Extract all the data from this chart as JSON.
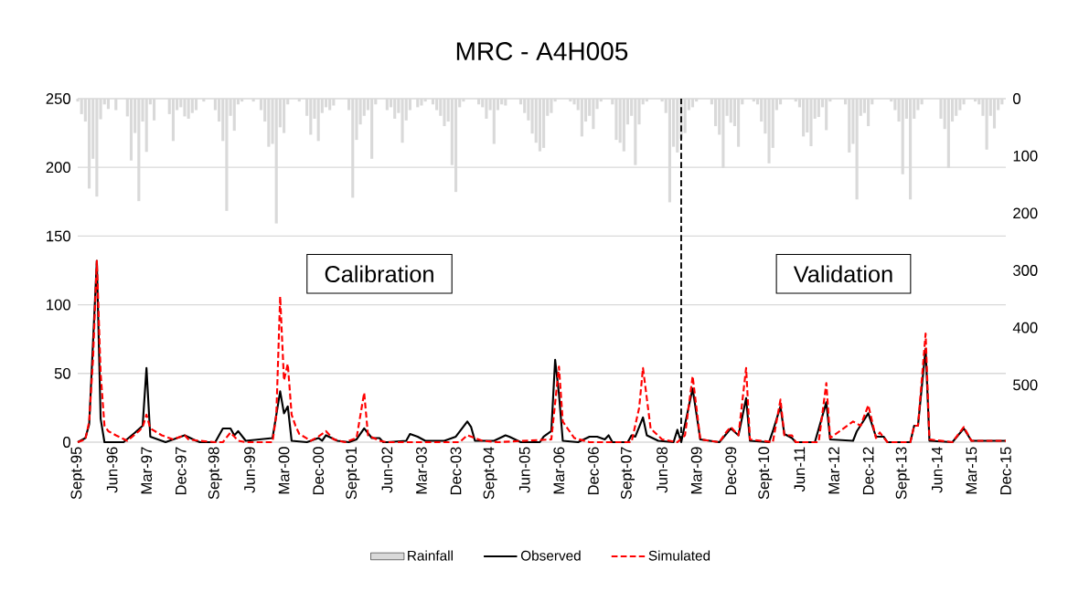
{
  "chart_data": {
    "type": "line",
    "title": "MRC - A4H005",
    "xlim": [
      "1995-09",
      "2015-12"
    ],
    "xticks": [
      {
        "value": "1995-09",
        "label": "Sept-95"
      },
      {
        "value": "1996-06",
        "label": "Jun-96"
      },
      {
        "value": "1997-03",
        "label": "Mar-97"
      },
      {
        "value": "1997-12",
        "label": "Dec-97"
      },
      {
        "value": "1998-09",
        "label": "Sept-98"
      },
      {
        "value": "1999-06",
        "label": "Jun-99"
      },
      {
        "value": "2000-03",
        "label": "Mar-00"
      },
      {
        "value": "2000-12",
        "label": "Dec-00"
      },
      {
        "value": "2001-09",
        "label": "Sept-01"
      },
      {
        "value": "2002-06",
        "label": "Jun-02"
      },
      {
        "value": "2003-03",
        "label": "Mar-03"
      },
      {
        "value": "2003-12",
        "label": "Dec-03"
      },
      {
        "value": "2004-09",
        "label": "Sept-04"
      },
      {
        "value": "2005-06",
        "label": "Jun-05"
      },
      {
        "value": "2006-03",
        "label": "Mar-06"
      },
      {
        "value": "2006-12",
        "label": "Dec-06"
      },
      {
        "value": "2007-09",
        "label": "Sept-07"
      },
      {
        "value": "2008-06",
        "label": "Jun-08"
      },
      {
        "value": "2009-03",
        "label": "Mar-09"
      },
      {
        "value": "2009-12",
        "label": "Dec-09"
      },
      {
        "value": "2010-09",
        "label": "Sept-10"
      },
      {
        "value": "2011-06",
        "label": "Jun-11"
      },
      {
        "value": "2012-03",
        "label": "Mar-12"
      },
      {
        "value": "2012-12",
        "label": "Dec-12"
      },
      {
        "value": "2013-09",
        "label": "Sept-13"
      },
      {
        "value": "2014-06",
        "label": "Jun-14"
      },
      {
        "value": "2015-03",
        "label": "Mar-15"
      },
      {
        "value": "2015-12",
        "label": "Dec-15"
      }
    ],
    "ylim": [
      0,
      250
    ],
    "yticks": [
      0,
      50,
      100,
      150,
      200,
      250
    ],
    "y2lim": [
      600,
      0
    ],
    "y2ticks": [
      0,
      100,
      200,
      300,
      400,
      500,
      {
        "value": 600,
        "label": null
      }
    ],
    "grid": "y",
    "legend": "bottom",
    "annotations": [
      "Calibration",
      "Validation"
    ],
    "ref_lines": [
      {
        "axis": "x",
        "value": "2008-11",
        "color": "#000000",
        "line_style": "dashed"
      }
    ],
    "series": [
      {
        "name": "Rainfall",
        "type": "bar",
        "axis": "y2",
        "color": "#d9d9d9",
        "x": [
          "1995-09",
          "1995-10",
          "1995-11",
          "1995-12",
          "1996-01",
          "1996-02",
          "1996-03",
          "1996-04",
          "1996-05",
          "1996-06",
          "1996-07",
          "1996-08",
          "1996-09",
          "1996-10",
          "1996-11",
          "1996-12",
          "1997-01",
          "1997-02",
          "1997-03",
          "1997-04",
          "1997-05",
          "1997-06",
          "1997-07",
          "1997-08",
          "1997-09",
          "1997-10",
          "1997-11",
          "1997-12",
          "1998-01",
          "1998-02",
          "1998-03",
          "1998-04",
          "1998-05",
          "1998-06",
          "1998-07",
          "1998-08",
          "1998-09",
          "1998-10",
          "1998-11",
          "1998-12",
          "1999-01",
          "1999-02",
          "1999-03",
          "1999-04",
          "1999-05",
          "1999-06",
          "1999-07",
          "1999-08",
          "1999-09",
          "1999-10",
          "1999-11",
          "1999-12",
          "2000-01",
          "2000-02",
          "2000-03",
          "2000-04",
          "2000-05",
          "2000-06",
          "2000-07",
          "2000-08",
          "2000-09",
          "2000-10",
          "2000-11",
          "2000-12",
          "2001-01",
          "2001-02",
          "2001-03",
          "2001-04",
          "2001-05",
          "2001-06",
          "2001-07",
          "2001-08",
          "2001-09",
          "2001-10",
          "2001-11",
          "2001-12",
          "2002-01",
          "2002-02",
          "2002-03",
          "2002-04",
          "2002-05",
          "2002-06",
          "2002-07",
          "2002-08",
          "2002-09",
          "2002-10",
          "2002-11",
          "2002-12",
          "2003-01",
          "2003-02",
          "2003-03",
          "2003-04",
          "2003-05",
          "2003-06",
          "2003-07",
          "2003-08",
          "2003-09",
          "2003-10",
          "2003-11",
          "2003-12",
          "2004-01",
          "2004-02",
          "2004-03",
          "2004-04",
          "2004-05",
          "2004-06",
          "2004-07",
          "2004-08",
          "2004-09",
          "2004-10",
          "2004-11",
          "2004-12",
          "2005-01",
          "2005-02",
          "2005-03",
          "2005-04",
          "2005-05",
          "2005-06",
          "2005-07",
          "2005-08",
          "2005-09",
          "2005-10",
          "2005-11",
          "2005-12",
          "2006-01",
          "2006-02",
          "2006-03",
          "2006-04",
          "2006-05",
          "2006-06",
          "2006-07",
          "2006-08",
          "2006-09",
          "2006-10",
          "2006-11",
          "2006-12",
          "2007-01",
          "2007-02",
          "2007-03",
          "2007-04",
          "2007-05",
          "2007-06",
          "2007-07",
          "2007-08",
          "2007-09",
          "2007-10",
          "2007-11",
          "2007-12",
          "2008-01",
          "2008-02",
          "2008-03",
          "2008-04",
          "2008-05",
          "2008-06",
          "2008-07",
          "2008-08",
          "2008-09",
          "2008-10",
          "2008-11",
          "2008-12",
          "2009-01",
          "2009-02",
          "2009-03",
          "2009-04",
          "2009-05",
          "2009-06",
          "2009-07",
          "2009-08",
          "2009-09",
          "2009-10",
          "2009-11",
          "2009-12",
          "2010-01",
          "2010-02",
          "2010-03",
          "2010-04",
          "2010-05",
          "2010-06",
          "2010-07",
          "2010-08",
          "2010-09",
          "2010-10",
          "2010-11",
          "2010-12",
          "2011-01",
          "2011-02",
          "2011-03",
          "2011-04",
          "2011-05",
          "2011-06",
          "2011-07",
          "2011-08",
          "2011-09",
          "2011-10",
          "2011-11",
          "2011-12",
          "2012-01",
          "2012-02",
          "2012-03",
          "2012-04",
          "2012-05",
          "2012-06",
          "2012-07",
          "2012-08",
          "2012-09",
          "2012-10",
          "2012-11",
          "2012-12",
          "2013-01",
          "2013-02",
          "2013-03",
          "2013-04",
          "2013-05",
          "2013-06",
          "2013-07",
          "2013-08",
          "2013-09",
          "2013-10",
          "2013-11",
          "2013-12",
          "2014-01",
          "2014-02",
          "2014-03",
          "2014-04",
          "2014-05",
          "2014-06",
          "2014-07",
          "2014-08",
          "2014-09",
          "2014-10",
          "2014-11",
          "2014-12",
          "2015-01",
          "2015-02",
          "2015-03",
          "2015-04",
          "2015-05",
          "2015-06",
          "2015-07",
          "2015-08",
          "2015-09",
          "2015-10",
          "2015-11",
          "2015-12"
        ],
        "values": [
          5,
          27,
          40,
          157,
          105,
          171,
          36,
          10,
          18,
          0,
          20,
          0,
          0,
          31,
          108,
          60,
          179,
          40,
          93,
          10,
          38,
          0,
          0,
          0,
          27,
          74,
          20,
          15,
          31,
          35,
          25,
          20,
          0,
          5,
          0,
          0,
          20,
          40,
          74,
          196,
          30,
          56,
          10,
          5,
          0,
          0,
          5,
          0,
          20,
          40,
          84,
          79,
          218,
          50,
          60,
          10,
          0,
          0,
          5,
          0,
          30,
          63,
          35,
          74,
          25,
          15,
          20,
          12,
          0,
          0,
          0,
          20,
          173,
          72,
          45,
          30,
          20,
          105,
          10,
          0,
          0,
          20,
          15,
          35,
          25,
          77,
          38,
          20,
          0,
          15,
          12,
          5,
          0,
          10,
          20,
          30,
          48,
          40,
          116,
          163,
          15,
          5,
          0,
          0,
          0,
          10,
          15,
          35,
          20,
          79,
          20,
          10,
          12,
          0,
          0,
          0,
          10,
          25,
          38,
          61,
          77,
          92,
          86,
          30,
          25,
          5,
          0,
          0,
          0,
          5,
          10,
          20,
          66,
          40,
          30,
          53,
          18,
          5,
          0,
          0,
          10,
          72,
          77,
          92,
          45,
          30,
          116,
          45,
          10,
          5,
          0,
          0,
          0,
          5,
          25,
          181,
          84,
          94,
          70,
          60,
          20,
          15,
          5,
          0,
          0,
          0,
          10,
          48,
          63,
          121,
          30,
          42,
          48,
          84,
          10,
          0,
          0,
          5,
          10,
          40,
          61,
          113,
          86,
          20,
          10,
          0,
          0,
          0,
          5,
          15,
          66,
          59,
          83,
          35,
          32,
          15,
          55,
          5,
          0,
          0,
          0,
          10,
          94,
          79,
          176,
          30,
          25,
          48,
          10,
          0,
          0,
          0,
          0,
          5,
          20,
          40,
          132,
          35,
          176,
          35,
          20,
          10,
          0,
          0,
          0,
          0,
          35,
          53,
          121,
          40,
          30,
          20,
          10,
          0,
          0,
          5,
          10,
          30,
          89,
          30,
          52,
          20,
          10,
          0
        ]
      },
      {
        "name": "Observed",
        "color": "#000000",
        "line_style": "solid",
        "x": [
          "1995-09",
          "1995-11",
          "1995-12",
          "1996-02",
          "1996-03",
          "1996-04",
          "1996-09",
          "1996-12",
          "1997-02",
          "1997-03",
          "1997-04",
          "1997-08",
          "1997-11",
          "1998-01",
          "1998-04",
          "1998-05",
          "1998-09",
          "1998-11",
          "1999-01",
          "1999-02",
          "1999-03",
          "1999-05",
          "1999-12",
          "2000-02",
          "2000-03",
          "2000-04",
          "2000-05",
          "2000-09",
          "2000-12",
          "2001-01",
          "2001-02",
          "2001-05",
          "2001-08",
          "2001-10",
          "2001-12",
          "2002-02",
          "2002-04",
          "2002-05",
          "2002-06",
          "2002-11",
          "2002-12",
          "2003-02",
          "2003-04",
          "2003-09",
          "2003-11",
          "2003-12",
          "2004-03",
          "2004-04",
          "2004-05",
          "2004-10",
          "2005-01",
          "2005-02",
          "2005-05",
          "2005-10",
          "2005-11",
          "2006-01",
          "2006-02",
          "2006-03",
          "2006-04",
          "2006-08",
          "2006-11",
          "2007-01",
          "2007-03",
          "2007-04",
          "2007-05",
          "2007-09",
          "2007-10",
          "2007-11",
          "2008-01",
          "2008-02",
          "2008-05",
          "2008-09",
          "2008-10",
          "2008-11",
          "2009-02",
          "2009-04",
          "2009-09",
          "2009-12",
          "2010-02",
          "2010-04",
          "2010-05",
          "2010-10",
          "2010-11",
          "2011-01",
          "2011-02",
          "2011-04",
          "2011-05",
          "2011-10",
          "2012-01",
          "2012-02",
          "2012-08",
          "2012-09",
          "2012-12",
          "2013-02",
          "2013-04",
          "2013-05",
          "2013-11",
          "2013-12",
          "2014-01",
          "2014-03",
          "2014-04",
          "2014-10",
          "2015-01",
          "2015-03",
          "2015-12"
        ],
        "values": [
          0,
          3,
          13,
          132,
          17,
          0,
          0,
          7,
          12,
          54,
          4,
          0,
          3,
          5,
          1,
          0,
          0,
          10,
          10,
          5,
          8,
          1,
          3,
          37,
          21,
          26,
          1,
          0,
          3,
          1,
          5,
          1,
          0,
          2,
          10,
          3,
          3,
          0,
          0,
          1,
          6,
          4,
          1,
          1,
          3,
          4,
          15,
          11,
          1,
          1,
          5,
          4,
          0,
          0,
          4,
          8,
          60,
          35,
          1,
          0,
          4,
          4,
          2,
          5,
          0,
          0,
          5,
          4,
          18,
          5,
          1,
          0,
          9,
          0,
          39,
          2,
          0,
          10,
          5,
          32,
          1,
          0,
          8,
          26,
          6,
          3,
          0,
          0,
          29,
          2,
          1,
          8,
          21,
          4,
          4,
          0,
          0,
          12,
          12,
          68,
          1,
          0,
          10,
          1,
          1
        ]
      },
      {
        "name": "Simulated",
        "color": "#ff0000",
        "line_style": "dashed",
        "x": [
          "1995-09",
          "1995-11",
          "1995-12",
          "1996-01",
          "1996-02",
          "1996-03",
          "1996-04",
          "1996-05",
          "1996-07",
          "1996-10",
          "1997-01",
          "1997-02",
          "1997-03",
          "1997-04",
          "1997-07",
          "1997-10",
          "1998-01",
          "1998-02",
          "1998-05",
          "1998-09",
          "1998-11",
          "1999-01",
          "1999-03",
          "1999-05",
          "1999-12",
          "2000-01",
          "2000-02",
          "2000-03",
          "2000-04",
          "2000-05",
          "2000-06",
          "2000-07",
          "2000-10",
          "2000-12",
          "2001-02",
          "2001-04",
          "2001-07",
          "2001-10",
          "2001-12",
          "2002-01",
          "2002-04",
          "2002-06",
          "2004-01",
          "2004-03",
          "2004-07",
          "2004-11",
          "2006-01",
          "2006-03",
          "2006-04",
          "2006-07",
          "2006-11",
          "2007-10",
          "2007-12",
          "2008-01",
          "2008-03",
          "2008-06",
          "2008-10",
          "2008-12",
          "2009-02",
          "2009-04",
          "2009-09",
          "2009-11",
          "2009-12",
          "2010-02",
          "2010-04",
          "2010-05",
          "2010-11",
          "2011-01",
          "2011-02",
          "2011-04",
          "2011-05",
          "2011-11",
          "2012-01",
          "2012-02",
          "2012-08",
          "2012-10",
          "2012-12",
          "2013-02",
          "2013-03",
          "2013-05",
          "2013-11",
          "2013-12",
          "2014-01",
          "2014-03",
          "2014-04",
          "2014-10",
          "2015-01",
          "2015-03",
          "2015-12"
        ],
        "values": [
          0,
          2,
          15,
          60,
          132,
          50,
          12,
          8,
          5,
          1,
          8,
          11,
          20,
          10,
          5,
          2,
          5,
          2,
          1,
          0,
          0,
          7,
          1,
          0,
          0,
          20,
          106,
          45,
          57,
          20,
          12,
          6,
          1,
          4,
          8,
          2,
          0,
          3,
          36,
          5,
          1,
          0,
          0,
          5,
          1,
          0,
          2,
          55,
          15,
          3,
          0,
          0,
          25,
          54,
          10,
          2,
          0,
          5,
          48,
          2,
          0,
          8,
          11,
          5,
          54,
          2,
          0,
          31,
          5,
          5,
          0,
          0,
          43,
          3,
          15,
          12,
          27,
          3,
          7,
          0,
          0,
          12,
          12,
          79,
          2,
          0,
          11,
          1,
          1
        ]
      }
    ]
  }
}
